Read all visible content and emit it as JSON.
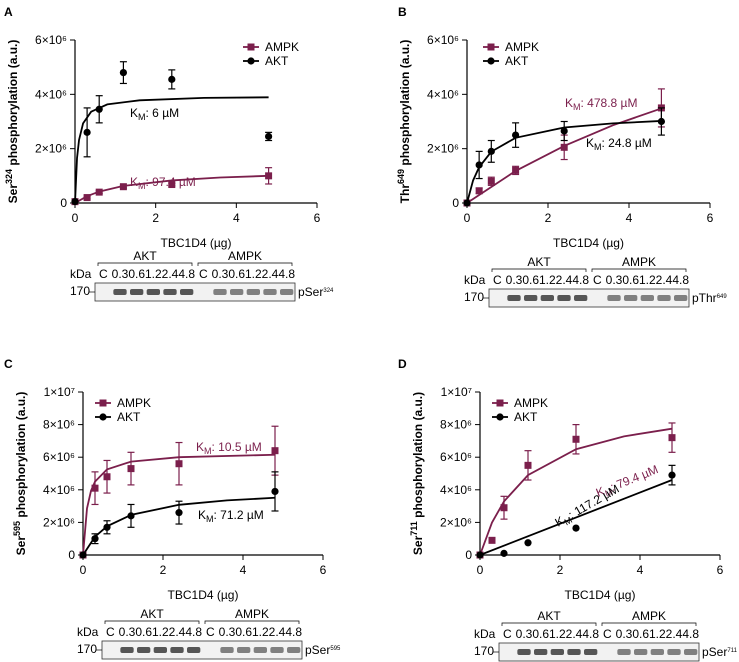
{
  "chart_data": [
    {
      "type": "scatter",
      "panel": "A",
      "y_label": [
        "Ser",
        "324",
        " phosphorylation (a.u.)"
      ],
      "x_label": "TBC1D4 (µg)",
      "xlim": [
        0,
        6
      ],
      "xticks": [
        0,
        2,
        4,
        6
      ],
      "ylim": [
        0,
        6000000
      ],
      "yticks": [
        0,
        {
          "value": 2000000,
          "label": "2×10⁶"
        },
        {
          "value": 4000000,
          "label": "4×10⁶"
        },
        {
          "value": 6000000,
          "label": "6×10⁶"
        }
      ],
      "series": [
        {
          "name": "AMPK",
          "color": "#7b1f4c",
          "marker": "square",
          "x": [
            0,
            0.3,
            0.6,
            1.2,
            2.4,
            4.8
          ],
          "values": [
            50000,
            200000,
            400000,
            600000,
            680000,
            1000000
          ],
          "errors": [
            null,
            50000,
            50000,
            50000,
            50000,
            300000
          ],
          "curve": {
            "x": [
              0,
              0.3,
              0.6,
              1.2,
              2.4,
              3.6,
              4.8
            ],
            "y": [
              0,
              250000,
              420000,
              630000,
              830000,
              940000,
              1000000
            ]
          },
          "km_label": [
            "K",
            "M",
            ": 97.4 µM"
          ]
        },
        {
          "name": "AKT",
          "color": "#000000",
          "marker": "circle",
          "x": [
            0,
            0.3,
            0.6,
            1.2,
            2.4,
            4.8
          ],
          "values": [
            50000,
            2600000,
            3450000,
            4800000,
            4550000,
            2450000
          ],
          "errors": [
            null,
            900000,
            500000,
            400000,
            350000,
            150000
          ],
          "curve": {
            "x": [
              0,
              0.05,
              0.1,
              0.2,
              0.4,
              0.8,
              1.6,
              3.2,
              4.8
            ],
            "y": [
              0,
              1650000,
              2320000,
              2930000,
              3360000,
              3630000,
              3780000,
              3870000,
              3890000
            ]
          },
          "km_label": [
            "K",
            "M",
            ": 6 µM"
          ]
        }
      ],
      "blot": {
        "kda_label": "kDa",
        "marker": "170",
        "groups": [
          "AKT",
          "AMPK"
        ],
        "lanes": [
          "C",
          "0.3",
          "0.6",
          "1.2",
          "2.4",
          "4.8"
        ],
        "antibody": [
          "pSer",
          "324"
        ]
      }
    },
    {
      "type": "scatter",
      "panel": "B",
      "y_label": [
        "Thr",
        "649",
        " phosphorylation (a.u.)"
      ],
      "x_label": "TBC1D4 (µg)",
      "xlim": [
        0,
        6
      ],
      "xticks": [
        0,
        2,
        4,
        6
      ],
      "ylim": [
        0,
        6000000
      ],
      "yticks": [
        0,
        {
          "value": 2000000,
          "label": "2×10⁶"
        },
        {
          "value": 4000000,
          "label": "4×10⁶"
        },
        {
          "value": 6000000,
          "label": "6×10⁶"
        }
      ],
      "series": [
        {
          "name": "AMPK",
          "color": "#7b1f4c",
          "marker": "square",
          "x": [
            0,
            0.3,
            0.6,
            1.2,
            2.4,
            4.8
          ],
          "values": [
            0,
            450000,
            800000,
            1200000,
            2050000,
            3500000
          ],
          "errors": [
            null,
            100000,
            150000,
            150000,
            450000,
            700000
          ],
          "curve": {
            "x": [
              0,
              1.2,
              2.4,
              3.6,
              4.8
            ],
            "y": [
              0,
              1180000,
              2100000,
              2860000,
              3480000
            ]
          },
          "km_label": [
            "K",
            "M",
            ": 478.8 µM"
          ]
        },
        {
          "name": "AKT",
          "color": "#000000",
          "marker": "circle",
          "x": [
            0,
            0.3,
            0.6,
            1.2,
            2.4,
            4.8
          ],
          "values": [
            0,
            1400000,
            1900000,
            2500000,
            2650000,
            3000000
          ],
          "errors": [
            null,
            500000,
            400000,
            450000,
            350000,
            500000
          ],
          "curve": {
            "x": [
              0,
              0.15,
              0.3,
              0.6,
              1.2,
              2.4,
              3.6,
              4.8
            ],
            "y": [
              0,
              830000,
              1320000,
              1890000,
              2400000,
              2780000,
              2930000,
              3020000
            ]
          },
          "km_label": [
            "K",
            "M",
            ": 24.8 µM"
          ]
        }
      ],
      "blot": {
        "kda_label": "kDa",
        "marker": "170",
        "groups": [
          "AKT",
          "AMPK"
        ],
        "lanes": [
          "C",
          "0.3",
          "0.6",
          "1.2",
          "2.4",
          "4.8"
        ],
        "antibody": [
          "pThr",
          "649"
        ]
      }
    },
    {
      "type": "scatter",
      "panel": "C",
      "y_label": [
        "Ser",
        "595",
        " phosphorylation (a.u.)"
      ],
      "x_label": "TBC1D4 (µg)",
      "xlim": [
        0,
        6
      ],
      "xticks": [
        0,
        2,
        4,
        6
      ],
      "ylim": [
        0,
        10000000
      ],
      "yticks": [
        0,
        {
          "value": 2000000,
          "label": "2×10⁶"
        },
        {
          "value": 4000000,
          "label": "4×10⁶"
        },
        {
          "value": 6000000,
          "label": "6×10⁶"
        },
        {
          "value": 8000000,
          "label": "8×10⁶"
        },
        {
          "value": 10000000,
          "label": "1×10⁷"
        }
      ],
      "series": [
        {
          "name": "AMPK",
          "color": "#7b1f4c",
          "marker": "square",
          "x": [
            0,
            0.3,
            0.6,
            1.2,
            2.4,
            4.8
          ],
          "values": [
            0,
            4100000,
            4800000,
            5300000,
            5600000,
            6400000
          ],
          "errors": [
            null,
            1000000,
            1000000,
            1000000,
            1300000,
            1500000
          ],
          "curve": {
            "x": [
              0,
              0.1,
              0.2,
              0.3,
              0.6,
              1.2,
              2.4,
              4.8
            ],
            "y": [
              0,
              2860000,
              3940000,
              4500000,
              5250000,
              5730000,
              6000000,
              6150000
            ]
          },
          "km_label": [
            "K",
            "M",
            ": 10.5 µM"
          ]
        },
        {
          "name": "AKT",
          "color": "#000000",
          "marker": "circle",
          "x": [
            0,
            0.3,
            0.6,
            1.2,
            2.4,
            4.8
          ],
          "values": [
            0,
            1000000,
            1700000,
            2400000,
            2600000,
            3900000
          ],
          "errors": [
            null,
            300000,
            400000,
            700000,
            700000,
            1200000
          ],
          "curve": {
            "x": [
              0,
              0.3,
              0.6,
              1.2,
              2.4,
              3.6,
              4.8
            ],
            "y": [
              0,
              1120000,
              1760000,
              2460000,
              3080000,
              3350000,
              3510000
            ]
          },
          "km_label": [
            "K",
            "M",
            ": 71.2 µM"
          ]
        }
      ],
      "blot": {
        "kda_label": "kDa",
        "marker": "170",
        "groups": [
          "AKT",
          "AMPK"
        ],
        "lanes": [
          "C",
          "0.3",
          "0.6",
          "1.2",
          "2.4",
          "4.8"
        ],
        "antibody": [
          "pSer",
          "595"
        ]
      }
    },
    {
      "type": "scatter",
      "panel": "D",
      "y_label": [
        "Ser",
        "711",
        " phosphorylation (a.u.)"
      ],
      "x_label": "TBC1D4 (µg)",
      "xlim": [
        0,
        6
      ],
      "xticks": [
        0,
        2,
        4,
        6
      ],
      "ylim": [
        0,
        10000000
      ],
      "yticks": [
        0,
        {
          "value": 2000000,
          "label": "2×10⁶"
        },
        {
          "value": 4000000,
          "label": "4×10⁶"
        },
        {
          "value": 6000000,
          "label": "6×10⁶"
        },
        {
          "value": 8000000,
          "label": "8×10⁶"
        },
        {
          "value": 10000000,
          "label": "1×10⁷"
        }
      ],
      "series": [
        {
          "name": "AMPK",
          "color": "#7b1f4c",
          "marker": "square",
          "x": [
            0,
            0.3,
            0.6,
            1.2,
            2.4,
            4.8
          ],
          "values": [
            0,
            900000,
            2900000,
            5500000,
            7100000,
            7200000
          ],
          "errors": [
            null,
            null,
            700000,
            900000,
            900000,
            900000
          ],
          "curve": {
            "x": [
              0,
              0.3,
              0.6,
              1.2,
              2.4,
              3.6,
              4.8
            ],
            "y": [
              0,
              1990000,
              3290000,
              4900000,
              6490000,
              7280000,
              7750000
            ]
          },
          "km_label": [
            "K",
            "M",
            ": 79.4 µM"
          ]
        },
        {
          "name": "AKT",
          "color": "#000000",
          "marker": "circle",
          "x": [
            0,
            0.6,
            1.2,
            2.4,
            4.8
          ],
          "values": [
            0,
            100000,
            750000,
            1650000,
            4900000
          ],
          "errors": [
            null,
            null,
            null,
            null,
            600000
          ],
          "curve": {
            "x": [
              0,
              4.8
            ],
            "y": [
              0,
              4600000
            ]
          },
          "km_label": [
            "K",
            "M",
            ": 117.2 µM"
          ]
        }
      ],
      "blot": {
        "kda_label": "kDa",
        "marker": "170",
        "groups": [
          "AKT",
          "AMPK"
        ],
        "lanes": [
          "C",
          "0.3",
          "0.6",
          "1.2",
          "2.4",
          "4.8"
        ],
        "antibody": [
          "pSer",
          "711"
        ]
      }
    }
  ]
}
